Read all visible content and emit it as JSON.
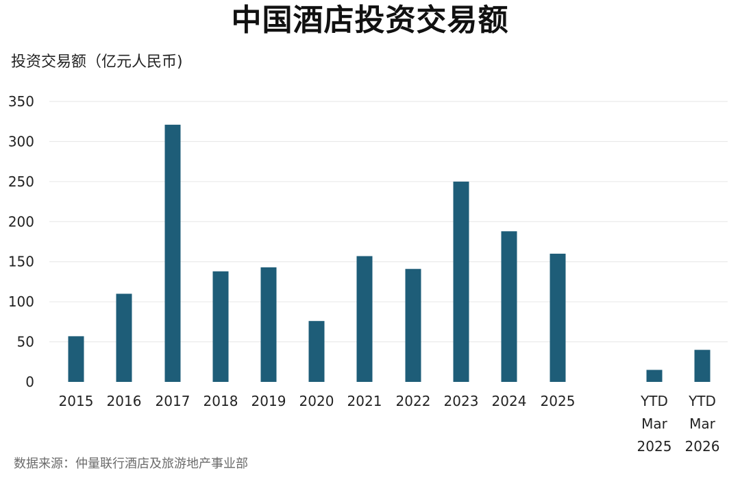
{
  "chart_data": {
    "type": "bar",
    "title": "中国酒店投资交易额",
    "ylabel": "投资交易额（亿元人民币)",
    "xlabel": "",
    "ylim": [
      0,
      350
    ],
    "yticks": [
      0,
      50,
      100,
      150,
      200,
      250,
      300,
      350
    ],
    "grid": true,
    "categories": [
      [
        "2015"
      ],
      [
        "2016"
      ],
      [
        "2017"
      ],
      [
        "2018"
      ],
      [
        "2019"
      ],
      [
        "2020"
      ],
      [
        "2021"
      ],
      [
        "2022"
      ],
      [
        "2023"
      ],
      [
        "2024"
      ],
      [
        "2025"
      ],
      [
        "YTD",
        "Mar",
        "2025"
      ],
      [
        "YTD",
        "Mar",
        "2026"
      ]
    ],
    "values": [
      57,
      110,
      321,
      138,
      143,
      76,
      157,
      141,
      250,
      188,
      160,
      15,
      40
    ],
    "bar_color": "#1e5d78",
    "source": "数据来源：仲量联行酒店及旅游地产事业部"
  }
}
